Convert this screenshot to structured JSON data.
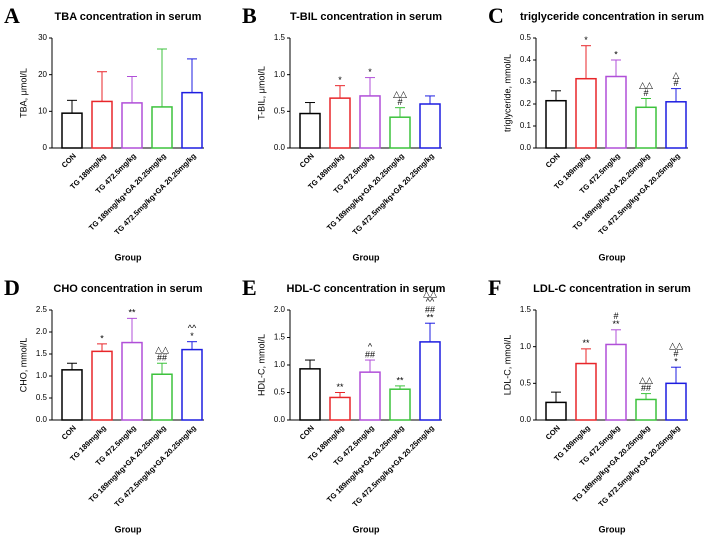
{
  "chart_data": [
    {
      "type": "bar",
      "label": "A",
      "title": "TBA concentration in serum",
      "ylabel": "TBA, μmol/L",
      "xlabel": "Group",
      "categories": [
        "CON",
        "TG 189mg/kg",
        "TG 472.5mg/kg",
        "TG 189mg/kg+GA 20.25mg/kg",
        "TG 472.5mg/kg+GA 20.25mg/kg"
      ],
      "values": [
        9.5,
        12.7,
        12.3,
        11.2,
        15.1
      ],
      "errors": [
        3.5,
        8.1,
        7.2,
        15.8,
        9.2
      ],
      "colors": [
        "#000000",
        "#e8262a",
        "#b04fd8",
        "#3cc23c",
        "#1d1de0"
      ],
      "annotations": [
        [],
        [],
        [],
        [],
        []
      ],
      "ylim": [
        0,
        30
      ],
      "yticks": [
        0,
        10,
        20,
        30
      ]
    },
    {
      "type": "bar",
      "label": "B",
      "title": "T-BIL concentration in serum",
      "ylabel": "T-BIL, μmol/L",
      "xlabel": "Group",
      "categories": [
        "CON",
        "TG 189mg/kg",
        "TG 472.5mg/kg",
        "TG 189mg/kg+GA 20.25mg/kg",
        "TG 472.5mg/kg+GA 20.25mg/kg"
      ],
      "values": [
        0.47,
        0.68,
        0.71,
        0.42,
        0.6
      ],
      "errors": [
        0.15,
        0.17,
        0.25,
        0.13,
        0.11
      ],
      "colors": [
        "#000000",
        "#e8262a",
        "#b04fd8",
        "#3cc23c",
        "#1d1de0"
      ],
      "annotations": [
        [],
        [
          "*"
        ],
        [
          "*"
        ],
        [
          "△△",
          "#"
        ],
        []
      ],
      "ylim": [
        0,
        1.5
      ],
      "yticks": [
        {
          "value": 0,
          "label": "0.0"
        },
        0.5,
        {
          "value": 1,
          "label": "1.0"
        },
        1.5
      ]
    },
    {
      "type": "bar",
      "label": "C",
      "title": "triglyceride concentration in serum",
      "ylabel": "triglyceride, mmol/L",
      "xlabel": "Group",
      "categories": [
        "CON",
        "TG 189mg/kg",
        "TG 472.5mg/kg",
        "TG 189mg/kg+GA 20.25mg/kg",
        "TG 472.5mg/kg+GA 20.25mg/kg"
      ],
      "values": [
        0.215,
        0.315,
        0.325,
        0.185,
        0.21
      ],
      "errors": [
        0.045,
        0.15,
        0.075,
        0.04,
        0.06
      ],
      "colors": [
        "#000000",
        "#e8262a",
        "#b04fd8",
        "#3cc23c",
        "#1d1de0"
      ],
      "annotations": [
        [],
        [
          "*"
        ],
        [
          "*"
        ],
        [
          "△△",
          "#"
        ],
        [
          "△",
          "#"
        ]
      ],
      "ylim": [
        0,
        0.5
      ],
      "yticks": [
        {
          "value": 0,
          "label": "0.0"
        },
        0.1,
        0.2,
        0.3,
        0.4,
        0.5
      ]
    },
    {
      "type": "bar",
      "label": "D",
      "title": "CHO concentration in serum",
      "ylabel": "CHO, mmol/L",
      "xlabel": "Group",
      "categories": [
        "CON",
        "TG 189mg/kg",
        "TG 472.5mg/kg",
        "TG 189mg/kg+GA 20.25mg/kg",
        "TG 472.5mg/kg+GA 20.25mg/kg"
      ],
      "values": [
        1.14,
        1.56,
        1.76,
        1.04,
        1.6
      ],
      "errors": [
        0.15,
        0.17,
        0.55,
        0.25,
        0.18
      ],
      "colors": [
        "#000000",
        "#e8262a",
        "#b04fd8",
        "#3cc23c",
        "#1d1de0"
      ],
      "annotations": [
        [],
        [
          "*"
        ],
        [
          "**"
        ],
        [
          "△△",
          "##"
        ],
        [
          "^^",
          "*"
        ]
      ],
      "ylim": [
        0,
        2.5
      ],
      "yticks": [
        {
          "value": 0,
          "label": "0.0"
        },
        0.5,
        {
          "value": 1,
          "label": "1.0"
        },
        1.5,
        {
          "value": 2,
          "label": "2.0"
        },
        2.5
      ]
    },
    {
      "type": "bar",
      "label": "E",
      "title": "HDL-C concentration in serum",
      "ylabel": "HDL-C, mmol/L",
      "xlabel": "Group",
      "categories": [
        "CON",
        "TG 189mg/kg",
        "TG 472.5mg/kg",
        "TG 189mg/kg+GA 20.25mg/kg",
        "TG 472.5mg/kg+GA 20.25mg/kg"
      ],
      "values": [
        0.93,
        0.41,
        0.87,
        0.56,
        1.42
      ],
      "errors": [
        0.16,
        0.09,
        0.22,
        0.06,
        0.34
      ],
      "colors": [
        "#000000",
        "#e8262a",
        "#b04fd8",
        "#3cc23c",
        "#1d1de0"
      ],
      "annotations": [
        [],
        [
          "**"
        ],
        [
          "^",
          "##"
        ],
        [
          "**"
        ],
        [
          "△△",
          "^^",
          "##",
          "**"
        ]
      ],
      "ylim": [
        0,
        2
      ],
      "yticks": [
        {
          "value": 0,
          "label": "0.0"
        },
        0.5,
        {
          "value": 1,
          "label": "1.0"
        },
        1.5,
        {
          "value": 2,
          "label": "2.0"
        }
      ]
    },
    {
      "type": "bar",
      "label": "F",
      "title": "LDL-C concentration in serum",
      "ylabel": "LDL-C, mmol/L",
      "xlabel": "Group",
      "categories": [
        "CON",
        "TG 189mg/kg",
        "TG 472.5mg/kg",
        "TG 189mg/kg+GA 20.25mg/kg",
        "TG 472.5mg/kg+GA 20.25mg/kg"
      ],
      "values": [
        0.24,
        0.77,
        1.03,
        0.28,
        0.5
      ],
      "errors": [
        0.14,
        0.2,
        0.2,
        0.08,
        0.22
      ],
      "colors": [
        "#000000",
        "#e8262a",
        "#b04fd8",
        "#3cc23c",
        "#1d1de0"
      ],
      "annotations": [
        [],
        [
          "**"
        ],
        [
          "#",
          "**"
        ],
        [
          "△△",
          "##"
        ],
        [
          "△△",
          "#",
          "*"
        ]
      ],
      "ylim": [
        0,
        1.5
      ],
      "yticks": [
        {
          "value": 0,
          "label": "0.0"
        },
        0.5,
        {
          "value": 1,
          "label": "1.0"
        },
        1.5
      ]
    }
  ]
}
